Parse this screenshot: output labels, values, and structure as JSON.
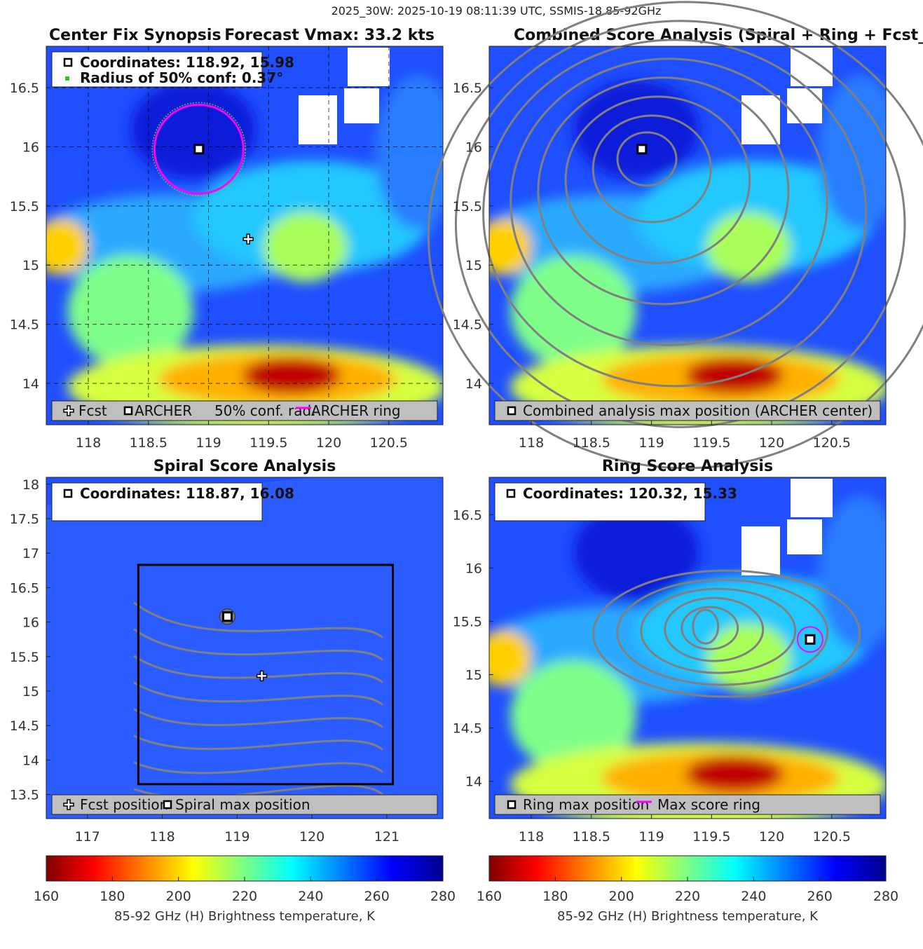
{
  "suptitle": "2025_30W: 2025-10-19 08:11:39 UTC, SSMIS-18 85-92GHz",
  "colors": {
    "archer_marker": "#000000",
    "conf_ring": "#ff00ff",
    "contour": "#808080",
    "legend_bg": "#bfbfbf",
    "conf_dot": "#22cc22"
  },
  "colorbars": [
    {
      "ticks": [
        "160",
        "180",
        "200",
        "220",
        "240",
        "260",
        "280"
      ],
      "label": "85-92 GHz (H) Brightness temperature, K",
      "range": [
        160,
        280
      ]
    },
    {
      "ticks": [
        "160",
        "180",
        "200",
        "220",
        "240",
        "260",
        "280"
      ],
      "label": "85-92 GHz (H) Brightness temperature, K",
      "range": [
        160,
        280
      ]
    }
  ],
  "chart_data": [
    {
      "type": "heatmap",
      "title_left": "Center Fix Synopsis",
      "title_right": "Forecast Vmax: 33.2 kts",
      "xticks": [
        "118",
        "118.5",
        "119",
        "119.5",
        "120",
        "120.5"
      ],
      "yticks": [
        "16.5",
        "16",
        "15.5",
        "15",
        "14.5",
        "14"
      ],
      "xlim": [
        117.65,
        120.95
      ],
      "ylim": [
        13.65,
        16.85
      ],
      "grid": true,
      "info": [
        "Coordinates: 118.92, 15.98",
        "Radius of 50% conf: 0.37°"
      ],
      "archer_center": [
        118.92,
        15.98
      ],
      "forecast_position": [
        119.33,
        15.22
      ],
      "conf_radius_deg": 0.37,
      "legend": [
        "Fcst",
        "ARCHER",
        "50% conf. rad.",
        "ARCHER ring"
      ]
    },
    {
      "type": "heatmap",
      "title": "Combined Score Analysis (Spiral + Ring + Fcst_Pe",
      "xticks": [
        "118",
        "118.5",
        "119",
        "119.5",
        "120",
        "120.5"
      ],
      "yticks": [
        "16.5",
        "16",
        "15.5",
        "15",
        "14.5",
        "14"
      ],
      "xlim": [
        117.65,
        120.95
      ],
      "ylim": [
        13.65,
        16.85
      ],
      "max_position": [
        118.92,
        15.98
      ],
      "legend": [
        "Combined analysis max position (ARCHER center)"
      ]
    },
    {
      "type": "heatmap",
      "title": "Spiral Score Analysis",
      "xticks": [
        "117",
        "118",
        "119",
        "120",
        "121"
      ],
      "yticks": [
        "18",
        "17.5",
        "17",
        "16.5",
        "16",
        "15.5",
        "15",
        "14.5",
        "14",
        "13.5"
      ],
      "xlim": [
        116.45,
        121.75
      ],
      "ylim": [
        13.15,
        18.1
      ],
      "info": [
        "Coordinates: 118.87, 16.08"
      ],
      "spiral_max": [
        118.87,
        16.08
      ],
      "forecast_position": [
        119.33,
        15.22
      ],
      "search_box": {
        "x": [
          117.68,
          121.08
        ],
        "y": [
          13.65,
          16.83
        ]
      },
      "legend": [
        "Fcst position",
        "Spiral max position"
      ]
    },
    {
      "type": "heatmap",
      "title": "Ring Score Analysis",
      "xticks": [
        "118",
        "118.5",
        "119",
        "119.5",
        "120",
        "120.5"
      ],
      "yticks": [
        "16.5",
        "16",
        "15.5",
        "15",
        "14.5",
        "14"
      ],
      "xlim": [
        117.65,
        120.95
      ],
      "ylim": [
        13.65,
        16.85
      ],
      "info": [
        "Coordinates: 120.32, 15.33"
      ],
      "ring_max": [
        120.32,
        15.33
      ],
      "legend": [
        "Ring max position",
        "Max score ring"
      ]
    }
  ]
}
